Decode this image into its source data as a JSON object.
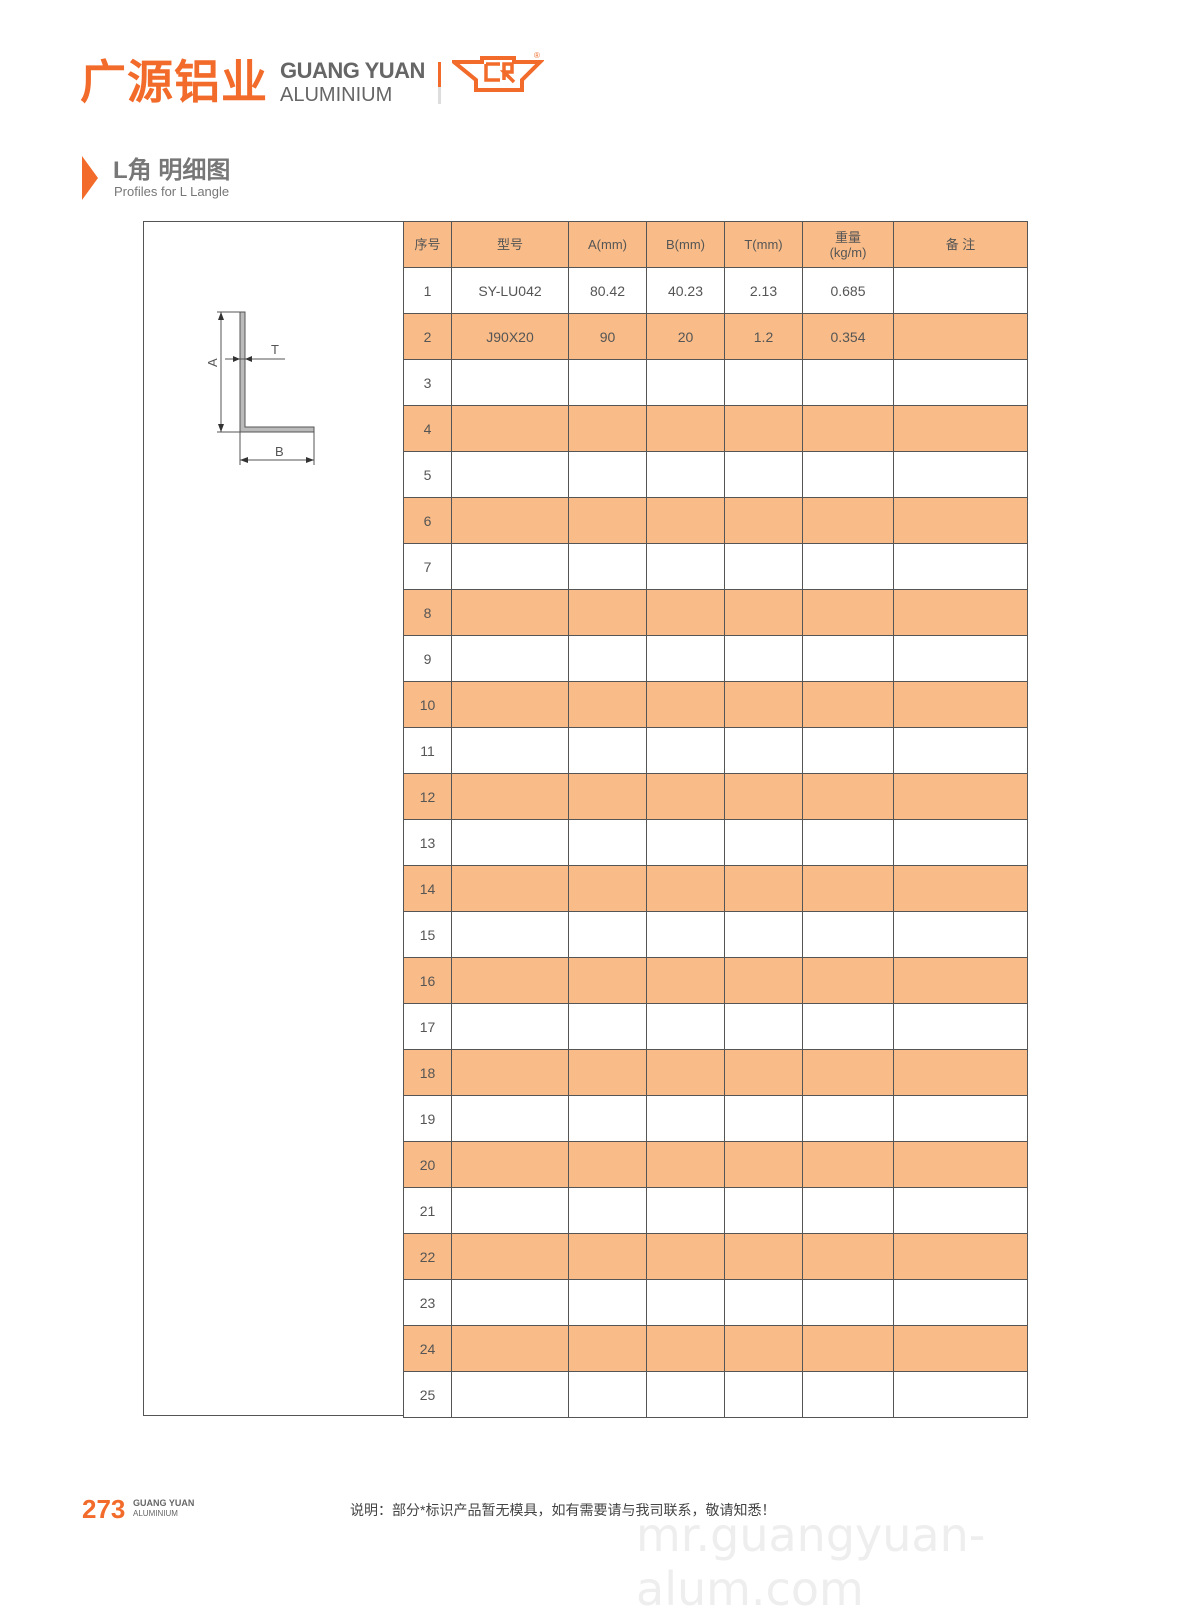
{
  "brand": {
    "cn": "广源铝业",
    "en_line1": "GUANG YUAN",
    "en_line2": "ALUMINIUM",
    "mark_letters": "CR",
    "color": "#f26b2a"
  },
  "section": {
    "title": "L角 明细图",
    "subtitle": "Profiles for L Langle"
  },
  "diagram": {
    "labels": {
      "a": "A",
      "b": "B",
      "t": "T"
    }
  },
  "table": {
    "headers": [
      "序号",
      "型号",
      "A(mm)",
      "B(mm)",
      "T(mm)",
      "重量\n(kg/m)",
      "备 注"
    ],
    "row_color": "#f9bc88",
    "rows": [
      [
        "1",
        "SY-LU042",
        "80.42",
        "40.23",
        "2.13",
        "0.685",
        ""
      ],
      [
        "2",
        "J90X20",
        "90",
        "20",
        "1.2",
        "0.354",
        ""
      ],
      [
        "3",
        "",
        "",
        "",
        "",
        "",
        ""
      ],
      [
        "4",
        "",
        "",
        "",
        "",
        "",
        ""
      ],
      [
        "5",
        "",
        "",
        "",
        "",
        "",
        ""
      ],
      [
        "6",
        "",
        "",
        "",
        "",
        "",
        ""
      ],
      [
        "7",
        "",
        "",
        "",
        "",
        "",
        ""
      ],
      [
        "8",
        "",
        "",
        "",
        "",
        "",
        ""
      ],
      [
        "9",
        "",
        "",
        "",
        "",
        "",
        ""
      ],
      [
        "10",
        "",
        "",
        "",
        "",
        "",
        ""
      ],
      [
        "11",
        "",
        "",
        "",
        "",
        "",
        ""
      ],
      [
        "12",
        "",
        "",
        "",
        "",
        "",
        ""
      ],
      [
        "13",
        "",
        "",
        "",
        "",
        "",
        ""
      ],
      [
        "14",
        "",
        "",
        "",
        "",
        "",
        ""
      ],
      [
        "15",
        "",
        "",
        "",
        "",
        "",
        ""
      ],
      [
        "16",
        "",
        "",
        "",
        "",
        "",
        ""
      ],
      [
        "17",
        "",
        "",
        "",
        "",
        "",
        ""
      ],
      [
        "18",
        "",
        "",
        "",
        "",
        "",
        ""
      ],
      [
        "19",
        "",
        "",
        "",
        "",
        "",
        ""
      ],
      [
        "20",
        "",
        "",
        "",
        "",
        "",
        ""
      ],
      [
        "21",
        "",
        "",
        "",
        "",
        "",
        ""
      ],
      [
        "22",
        "",
        "",
        "",
        "",
        "",
        ""
      ],
      [
        "23",
        "",
        "",
        "",
        "",
        "",
        ""
      ],
      [
        "24",
        "",
        "",
        "",
        "",
        "",
        ""
      ],
      [
        "25",
        "",
        "",
        "",
        "",
        "",
        ""
      ]
    ]
  },
  "footer": {
    "page_number": "273",
    "brand_line1": "GUANG YUAN",
    "brand_line2": "ALUMINIUM",
    "note": "说明：部分*标识产品暂无模具，如有需要请与我司联系，敬请知悉！"
  },
  "watermark": "mr.guangyuan-alum.com"
}
